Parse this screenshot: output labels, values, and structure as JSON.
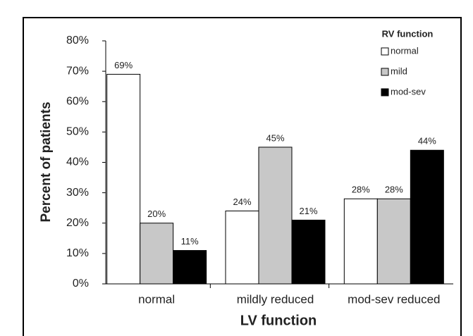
{
  "chart_data": {
    "type": "bar",
    "x_label": "LV function",
    "y_label": "Percent of patients",
    "categories": [
      "normal",
      "mildly reduced",
      "mod-sev reduced"
    ],
    "series": [
      {
        "name": "normal",
        "color": "#ffffff",
        "values": [
          69,
          24,
          28
        ],
        "value_labels": [
          "69%",
          "24%",
          "28%"
        ]
      },
      {
        "name": "mild",
        "color": "#c8c8c8",
        "values": [
          20,
          45,
          28
        ],
        "value_labels": [
          "20%",
          "45%",
          "28%"
        ]
      },
      {
        "name": "mod-sev",
        "color": "#000000",
        "values": [
          11,
          21,
          44
        ],
        "value_labels": [
          "11%",
          "21%",
          "44%"
        ]
      }
    ],
    "legend_title": "RV function",
    "legend": "top-right",
    "ylim": [
      0,
      80
    ],
    "yticks": [
      {
        "value": 0,
        "label": "0%"
      },
      {
        "value": 10,
        "label": "10%"
      },
      {
        "value": 20,
        "label": "20%"
      },
      {
        "value": 30,
        "label": "30%"
      },
      {
        "value": 40,
        "label": "40%"
      },
      {
        "value": 50,
        "label": "50%"
      },
      {
        "value": 60,
        "label": "60%"
      },
      {
        "value": 70,
        "label": "70%"
      },
      {
        "value": 80,
        "label": "80%"
      }
    ]
  }
}
